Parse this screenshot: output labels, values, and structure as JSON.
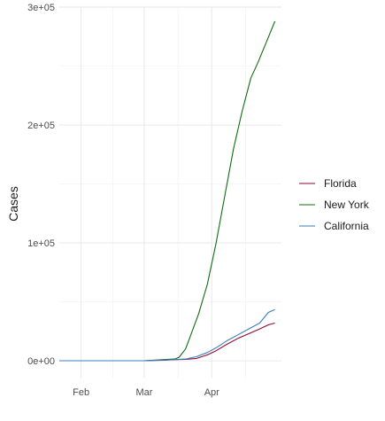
{
  "chart_data": {
    "type": "line",
    "title": "",
    "xlabel": "",
    "ylabel": "Cases",
    "x_type": "date",
    "xlim": [
      "2020-01-22",
      "2020-05-03"
    ],
    "ylim": [
      -15000,
      300000
    ],
    "x_ticks": [
      {
        "date": "2020-02-01",
        "label": "Feb"
      },
      {
        "date": "2020-03-01",
        "label": "Mar"
      },
      {
        "date": "2020-04-01",
        "label": "Apr"
      }
    ],
    "y_ticks": [
      {
        "value": 0,
        "label": "0e+00"
      },
      {
        "value": 100000,
        "label": "1e+05"
      },
      {
        "value": 200000,
        "label": "2e+05"
      },
      {
        "value": 300000,
        "label": "3e+05"
      }
    ],
    "grid": true,
    "legend_position": "right",
    "series": [
      {
        "name": "Florida",
        "color": "#8b0a2e",
        "points": [
          [
            "2020-01-22",
            0
          ],
          [
            "2020-03-01",
            0
          ],
          [
            "2020-03-10",
            500
          ],
          [
            "2020-03-15",
            1000
          ],
          [
            "2020-03-20",
            1200
          ],
          [
            "2020-03-25",
            2000
          ],
          [
            "2020-03-30",
            5000
          ],
          [
            "2020-04-03",
            8500
          ],
          [
            "2020-04-08",
            14000
          ],
          [
            "2020-04-13",
            19000
          ],
          [
            "2020-04-18",
            23000
          ],
          [
            "2020-04-23",
            27000
          ],
          [
            "2020-04-27",
            30500
          ],
          [
            "2020-04-30",
            32000
          ]
        ]
      },
      {
        "name": "New York",
        "color": "#136b13",
        "points": [
          [
            "2020-01-22",
            0
          ],
          [
            "2020-03-01",
            0
          ],
          [
            "2020-03-10",
            1000
          ],
          [
            "2020-03-15",
            1500
          ],
          [
            "2020-03-17",
            3000
          ],
          [
            "2020-03-20",
            10000
          ],
          [
            "2020-03-23",
            25000
          ],
          [
            "2020-03-26",
            40000
          ],
          [
            "2020-03-30",
            65000
          ],
          [
            "2020-04-03",
            100000
          ],
          [
            "2020-04-07",
            140000
          ],
          [
            "2020-04-11",
            180000
          ],
          [
            "2020-04-15",
            212000
          ],
          [
            "2020-04-19",
            240000
          ],
          [
            "2020-04-22",
            252000
          ],
          [
            "2020-04-26",
            270000
          ],
          [
            "2020-04-30",
            288000
          ]
        ]
      },
      {
        "name": "California",
        "color": "#3a7cbf",
        "points": [
          [
            "2020-01-22",
            0
          ],
          [
            "2020-03-01",
            0
          ],
          [
            "2020-03-10",
            600
          ],
          [
            "2020-03-15",
            1000
          ],
          [
            "2020-03-20",
            1500
          ],
          [
            "2020-03-25",
            3500
          ],
          [
            "2020-03-30",
            7000
          ],
          [
            "2020-04-03",
            11000
          ],
          [
            "2020-04-08",
            17000
          ],
          [
            "2020-04-13",
            22000
          ],
          [
            "2020-04-18",
            27000
          ],
          [
            "2020-04-23",
            32000
          ],
          [
            "2020-04-27",
            41000
          ],
          [
            "2020-04-30",
            43500
          ]
        ]
      }
    ]
  }
}
